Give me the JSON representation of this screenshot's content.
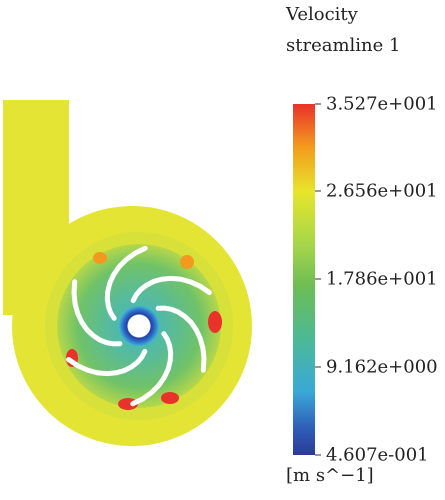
{
  "legend": {
    "title_line1": "Velocity",
    "title_line2": "streamline 1",
    "tick_labels": [
      "3.527e+001",
      "2.656e+001",
      "1.786e+001",
      "9.162e+000",
      "4.607e-001"
    ],
    "unit": "[m s^−1]",
    "colormap": [
      "#e8322a",
      "#f39a1e",
      "#e7e52a",
      "#a6d64a",
      "#6dbd54",
      "#4ab99a",
      "#3aa8d8",
      "#2f60b8",
      "#2b3a9a"
    ]
  },
  "pump": {
    "casing_color": "#e3e433",
    "impeller_color": "#60bf86",
    "blade_color": "#ffffff",
    "hub_color": "#1f3fa6",
    "blade_count": 6
  }
}
